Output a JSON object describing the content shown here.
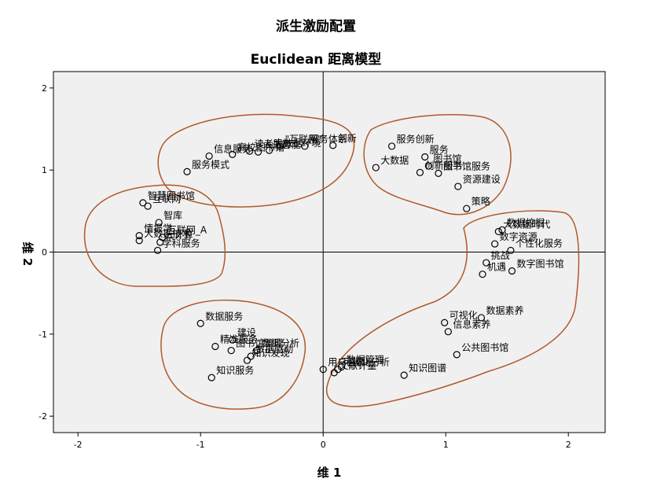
{
  "chart_data": {
    "type": "scatter",
    "title": "派生激励配置",
    "subtitle": "Euclidean 距离模型",
    "xlabel": "维 1",
    "ylabel": "维 2",
    "xlim": [
      -2.2,
      2.3
    ],
    "ylim": [
      -2.2,
      2.2
    ],
    "x_ticks": [
      -2,
      -1,
      0,
      1,
      2
    ],
    "y_ticks": [
      -2,
      -1,
      0,
      1,
      2
    ],
    "x_tick_labels": [
      "-2",
      "-1",
      "0",
      "1",
      "2"
    ],
    "y_tick_labels": [
      "-2",
      "-1",
      "0",
      "1",
      "2"
    ],
    "grid": false,
    "reference_lines": [
      0,
      0
    ],
    "colors": {
      "plot_bg": "#f0f0f0",
      "cluster_outline": "#b05a2a",
      "marker": "#000000"
    },
    "points": [
      {
        "label": "读者服务",
        "x": -0.6,
        "y": 1.23
      },
      {
        "label": "\"互联网\"",
        "x": -0.35,
        "y": 1.29
      },
      {
        "label": "高校图书馆",
        "x": -0.74,
        "y": 1.19
      },
      {
        "label": "大数据环境",
        "x": -0.44,
        "y": 1.24
      },
      {
        "label": "服务体系",
        "x": -0.15,
        "y": 1.29
      },
      {
        "label": "创新",
        "x": 0.08,
        "y": 1.3
      },
      {
        "label": "信息服务",
        "x": -0.93,
        "y": 1.17
      },
      {
        "label": "人工智能",
        "x": -0.53,
        "y": 1.22
      },
      {
        "label": "服务模式",
        "x": -1.11,
        "y": 0.98
      },
      {
        "label": "服务创新",
        "x": 0.56,
        "y": 1.29
      },
      {
        "label": "服务",
        "x": 0.83,
        "y": 1.16
      },
      {
        "label": "图书馆",
        "x": 0.86,
        "y": 1.05
      },
      {
        "label": "创新服务",
        "x": 0.79,
        "y": 0.97
      },
      {
        "label": "大数据",
        "x": 0.43,
        "y": 1.03
      },
      {
        "label": "图书馆服务",
        "x": 0.94,
        "y": 0.96
      },
      {
        "label": "资源建设",
        "x": 1.1,
        "y": 0.8
      },
      {
        "label": "策略",
        "x": 1.17,
        "y": 0.53
      },
      {
        "label": "智慧图书馆",
        "x": -1.47,
        "y": 0.6
      },
      {
        "label": "互联网",
        "x": -1.43,
        "y": 0.56
      },
      {
        "label": "智库",
        "x": -1.34,
        "y": 0.36
      },
      {
        "label": "情报学",
        "x": -1.5,
        "y": 0.2
      },
      {
        "label": "互联网_A",
        "x": -1.31,
        "y": 0.18
      },
      {
        "label": "云计算",
        "x": -1.33,
        "y": 0.12
      },
      {
        "label": "大数据技术",
        "x": -1.5,
        "y": 0.14
      },
      {
        "label": "学科服务",
        "x": -1.35,
        "y": 0.02
      },
      {
        "label": "大数据时代",
        "x": 1.43,
        "y": 0.25
      },
      {
        "label": "数据挖掘",
        "x": 1.46,
        "y": 0.27
      },
      {
        "label": "数字资源",
        "x": 1.4,
        "y": 0.1
      },
      {
        "label": "个性化服务",
        "x": 1.53,
        "y": 0.02
      },
      {
        "label": "挑战",
        "x": 1.33,
        "y": -0.13
      },
      {
        "label": "机遇",
        "x": 1.3,
        "y": -0.27
      },
      {
        "label": "数字图书馆",
        "x": 1.54,
        "y": -0.23
      },
      {
        "label": "数据素养",
        "x": 1.29,
        "y": -0.8
      },
      {
        "label": "可视化",
        "x": 0.99,
        "y": -0.86
      },
      {
        "label": "信息素养",
        "x": 1.02,
        "y": -0.97
      },
      {
        "label": "公共图书馆",
        "x": 1.09,
        "y": -1.25
      },
      {
        "label": "知识图谱",
        "x": 0.66,
        "y": -1.5
      },
      {
        "label": "数据服务",
        "x": -1.0,
        "y": -0.87
      },
      {
        "label": "建设",
        "x": -0.74,
        "y": -1.07
      },
      {
        "label": "图书馆管理",
        "x": -0.75,
        "y": -1.2
      },
      {
        "label": "精准服务",
        "x": -0.88,
        "y": -1.15
      },
      {
        "label": "数据分析",
        "x": -0.54,
        "y": -1.2
      },
      {
        "label": "数据驱动",
        "x": -0.59,
        "y": -1.27
      },
      {
        "label": "知识发现",
        "x": -0.62,
        "y": -1.32
      },
      {
        "label": "知识服务",
        "x": -0.91,
        "y": -1.53
      },
      {
        "label": "用户画像",
        "x": 0.0,
        "y": -1.43
      },
      {
        "label": "数据管理",
        "x": 0.15,
        "y": -1.4
      },
      {
        "label": "可视化分析",
        "x": 0.12,
        "y": -1.43
      },
      {
        "label": "文献计量",
        "x": 0.09,
        "y": -1.47
      }
    ]
  }
}
